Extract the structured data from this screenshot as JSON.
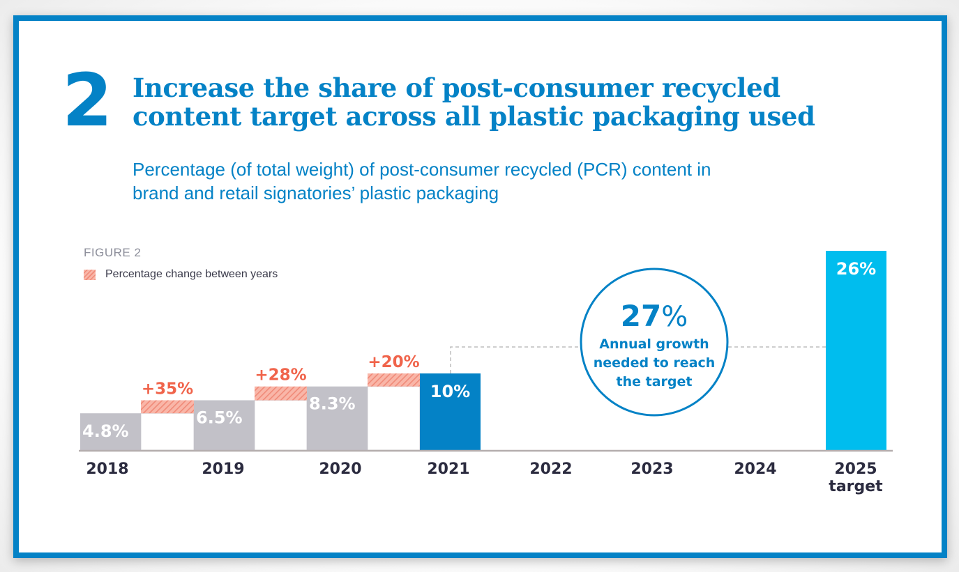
{
  "header": {
    "number": "2",
    "title_lines": [
      "Increase the share of post-consumer recycled",
      "content target across all plastic packaging used"
    ],
    "subtitle_lines": [
      "Percentage (of total weight) of post-consumer recycled (PCR) content in",
      "brand and retail signatories’ plastic packaging"
    ]
  },
  "figure_label": "FIGURE 2",
  "legend": {
    "label": "Percentage change between years"
  },
  "colors": {
    "frame": "#0482c6",
    "historic_bar": "#c2c1c8",
    "current_bar": "#0482c6",
    "target_bar": "#00bdee",
    "change": "#f0644b",
    "hatch_light": "#f9b6a8",
    "hatch_dark": "#f08a78",
    "axis_text": "#2b2b3f"
  },
  "callout": {
    "value": "27",
    "unit": "%",
    "lines": [
      "Annual growth",
      "needed to reach",
      "the target"
    ]
  },
  "chart_data": {
    "type": "bar",
    "title": "Percentage (of total weight) of post-consumer recycled (PCR) content in brand and retail signatories’ plastic packaging",
    "xlabel": "",
    "ylabel": "",
    "categories": [
      "2018",
      "2019",
      "2020",
      "2021",
      "2022",
      "2023",
      "2024",
      "2025"
    ],
    "category_sublabels": [
      "",
      "",
      "",
      "",
      "",
      "",
      "",
      "target"
    ],
    "values": [
      4.8,
      6.5,
      8.3,
      10,
      null,
      null,
      null,
      26
    ],
    "value_labels": [
      "4.8%",
      "6.5%",
      "8.3%",
      "10%",
      "",
      "",
      "",
      "26%"
    ],
    "bar_kinds": [
      "historic",
      "historic",
      "historic",
      "current",
      "none",
      "none",
      "none",
      "target"
    ],
    "changes": [
      {
        "from": "2018",
        "to": "2019",
        "label": "+35%"
      },
      {
        "from": "2019",
        "to": "2020",
        "label": "+28%"
      },
      {
        "from": "2020",
        "to": "2021",
        "label": "+20%"
      }
    ],
    "annotation": "27% Annual growth needed to reach the target",
    "ylim": [
      0,
      26
    ],
    "grid": false,
    "legend": [
      {
        "name": "Percentage change between years",
        "style": "hatched"
      }
    ],
    "legend_position": "top-left"
  }
}
